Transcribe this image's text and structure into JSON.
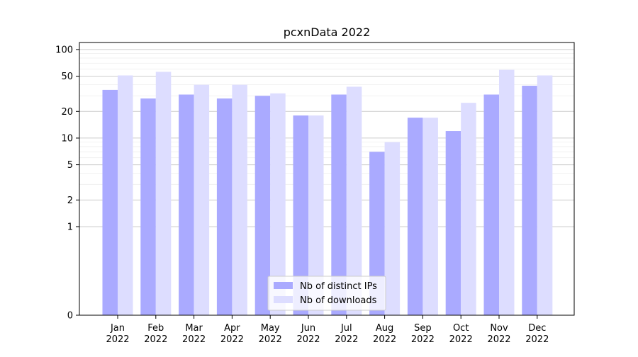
{
  "chart_data": {
    "type": "bar",
    "title": "pcxnData 2022",
    "xlabel": "",
    "ylabel": "",
    "yscale": "symlog",
    "ylim": [
      0,
      120
    ],
    "yticks": [
      0,
      1,
      2,
      5,
      10,
      20,
      50,
      100
    ],
    "grid": "horizontal",
    "legend_position": "bottom-center",
    "categories": [
      [
        "Jan",
        "2022"
      ],
      [
        "Feb",
        "2022"
      ],
      [
        "Mar",
        "2022"
      ],
      [
        "Apr",
        "2022"
      ],
      [
        "May",
        "2022"
      ],
      [
        "Jun",
        "2022"
      ],
      [
        "Jul",
        "2022"
      ],
      [
        "Aug",
        "2022"
      ],
      [
        "Sep",
        "2022"
      ],
      [
        "Oct",
        "2022"
      ],
      [
        "Nov",
        "2022"
      ],
      [
        "Dec",
        "2022"
      ]
    ],
    "series": [
      {
        "name": "Nb of distinct IPs",
        "color": "#aaaaff",
        "values": [
          35,
          28,
          31,
          28,
          30,
          18,
          31,
          7,
          17,
          12,
          31,
          39
        ]
      },
      {
        "name": "Nb of downloads",
        "color": "#ddddff",
        "values": [
          51,
          56,
          40,
          40,
          32,
          18,
          38,
          9,
          17,
          25,
          59,
          51
        ]
      }
    ]
  }
}
